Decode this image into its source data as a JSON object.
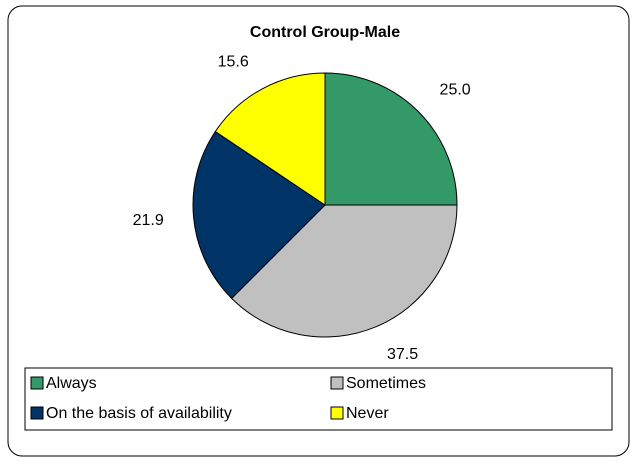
{
  "chart_data": {
    "type": "pie",
    "title": "Control Group-Male",
    "categories": [
      "Always",
      "Sometimes",
      "On the basis of availability",
      "Never"
    ],
    "values": [
      25.0,
      37.5,
      21.9,
      15.6
    ],
    "value_labels": [
      "25.0",
      "37.5",
      "21.9",
      "15.6"
    ],
    "colors": [
      "#339966",
      "#c0c0c0",
      "#003366",
      "#ffff00"
    ],
    "legend": "bottom"
  }
}
